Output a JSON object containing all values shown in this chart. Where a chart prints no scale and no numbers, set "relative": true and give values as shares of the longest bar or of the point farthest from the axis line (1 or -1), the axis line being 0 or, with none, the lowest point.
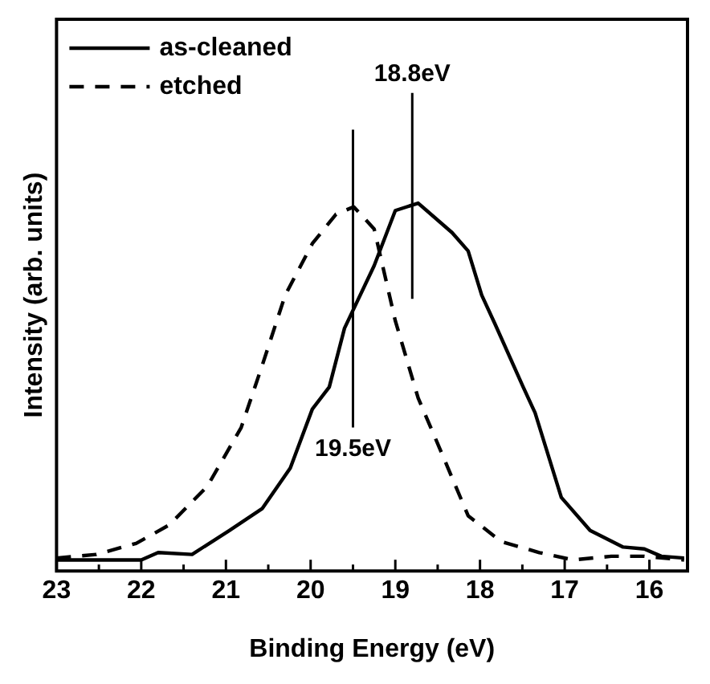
{
  "chart_data": {
    "type": "line",
    "xlabel": "Binding Energy (eV)",
    "ylabel": "Intensity (arb. units)",
    "relative": true,
    "xlim": [
      23,
      15.55
    ],
    "xticks": [
      23,
      {
        "value": 22.5,
        "label": null
      },
      22,
      {
        "value": 21.5,
        "label": null
      },
      21,
      {
        "value": 20.5,
        "label": null
      },
      20,
      {
        "value": 19.5,
        "label": null
      },
      19,
      {
        "value": 18.5,
        "label": null
      },
      18,
      {
        "value": 17.5,
        "label": null
      },
      17,
      {
        "value": 16.5,
        "label": null
      },
      16
    ],
    "series": [
      {
        "name": "as-cleaned",
        "color": "#000000",
        "line_style": "solid",
        "x": [
          23,
          22,
          21.8,
          21.4,
          20.96,
          20.57,
          20.24,
          19.98,
          19.78,
          19.6,
          19.25,
          19.0,
          18.73,
          18.33,
          18.14,
          17.98,
          17.82,
          17.49,
          17.35,
          17.04,
          16.7,
          16.31,
          16.06,
          15.86,
          15.59
        ],
        "values": [
          0.03,
          0.03,
          0.05,
          0.045,
          0.11,
          0.17,
          0.28,
          0.44,
          0.5,
          0.66,
          0.83,
          0.98,
          1.0,
          0.92,
          0.87,
          0.75,
          0.67,
          0.5,
          0.43,
          0.2,
          0.11,
          0.065,
          0.06,
          0.04,
          0.035
        ]
      },
      {
        "name": "etched",
        "color": "#000000",
        "line_style": "dashed",
        "x": [
          23,
          22.53,
          22.06,
          21.67,
          21.22,
          20.82,
          20.57,
          20.3,
          19.98,
          19.7,
          19.49,
          19.25,
          19.0,
          18.73,
          18.47,
          18.14,
          17.75,
          17.3,
          16.9,
          16.45,
          16.06,
          15.59
        ],
        "values": [
          0.035,
          0.045,
          0.075,
          0.125,
          0.23,
          0.39,
          0.56,
          0.75,
          0.89,
          0.97,
          0.99,
          0.93,
          0.68,
          0.47,
          0.33,
          0.15,
          0.08,
          0.05,
          0.03,
          0.04,
          0.04,
          0.03
        ]
      }
    ],
    "ref_lines": [
      {
        "axis": "x",
        "value": 18.8,
        "label": "18.8eV"
      },
      {
        "axis": "x",
        "value": 19.5,
        "label": "19.5eV"
      }
    ],
    "legend": "top left",
    "grid": false
  }
}
